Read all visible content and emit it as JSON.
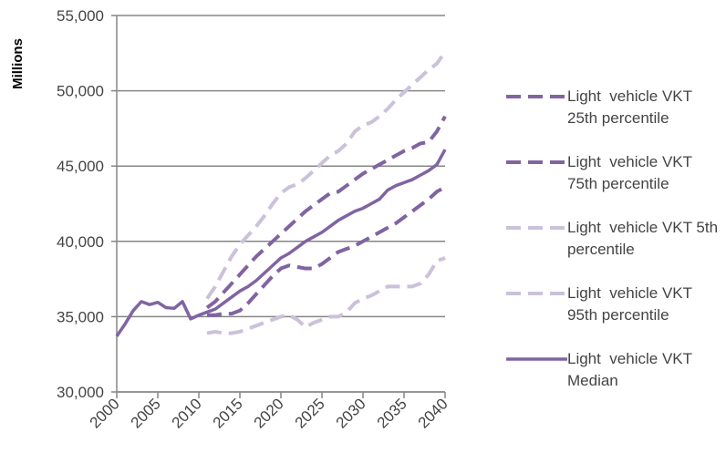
{
  "chart_data": {
    "type": "line",
    "y_label": "Millions",
    "x": [
      2000,
      2001,
      2002,
      2003,
      2004,
      2005,
      2006,
      2007,
      2008,
      2009,
      2010,
      2011,
      2012,
      2013,
      2014,
      2015,
      2016,
      2017,
      2018,
      2019,
      2020,
      2021,
      2022,
      2023,
      2024,
      2025,
      2026,
      2027,
      2028,
      2029,
      2030,
      2031,
      2032,
      2033,
      2034,
      2035,
      2036,
      2037,
      2038,
      2039,
      2040
    ],
    "xlim": [
      2000,
      2040
    ],
    "xticks": [
      2000,
      2005,
      2010,
      2015,
      2020,
      2025,
      2030,
      2035,
      2040
    ],
    "ylim": [
      30000,
      55000
    ],
    "yticks": [
      {
        "value": 30000,
        "label": "30,000"
      },
      {
        "value": 35000,
        "label": "35,000"
      },
      {
        "value": 40000,
        "label": "40,000"
      },
      {
        "value": 45000,
        "label": "45,000"
      },
      {
        "value": 50000,
        "label": "50,000"
      },
      {
        "value": 55000,
        "label": "55,000"
      }
    ],
    "grid": true,
    "legend": "right",
    "series": [
      {
        "name": "Light  vehicle VKT 25th percentile",
        "color": "#8064a2",
        "dashed": true,
        "values": [
          null,
          null,
          null,
          null,
          null,
          null,
          null,
          null,
          null,
          null,
          null,
          35100,
          35100,
          35200,
          35200,
          35400,
          35900,
          36500,
          37100,
          37700,
          38200,
          38400,
          38300,
          38200,
          38200,
          38500,
          38900,
          39300,
          39500,
          39700,
          40000,
          40300,
          40600,
          40900,
          41200,
          41600,
          42000,
          42400,
          42800,
          43300,
          43600
        ]
      },
      {
        "name": "Light  vehicle VKT 75th percentile",
        "color": "#8064a2",
        "dashed": true,
        "values": [
          null,
          null,
          null,
          null,
          null,
          null,
          null,
          null,
          null,
          null,
          null,
          35600,
          36000,
          36600,
          37200,
          37800,
          38400,
          39000,
          39500,
          40000,
          40500,
          41000,
          41500,
          42000,
          42400,
          42800,
          43200,
          43300,
          43700,
          44100,
          44500,
          44800,
          45100,
          45400,
          45700,
          46000,
          46200,
          46500,
          46600,
          47300,
          48300
        ]
      },
      {
        "name": "Light  vehicle VKT 5th percentile",
        "color": "#ccc1da",
        "dashed": true,
        "values": [
          null,
          null,
          null,
          null,
          null,
          null,
          null,
          null,
          null,
          null,
          null,
          33900,
          34000,
          33900,
          33900,
          34000,
          34200,
          34400,
          34600,
          34800,
          35000,
          35100,
          34800,
          34300,
          34600,
          34800,
          35000,
          35000,
          35300,
          35900,
          36200,
          36400,
          36700,
          37000,
          37000,
          37000,
          37000,
          37200,
          37800,
          38700,
          38900
        ]
      },
      {
        "name": "Light  vehicle VKT 95th percentile",
        "color": "#ccc1da",
        "dashed": true,
        "values": [
          null,
          null,
          null,
          null,
          null,
          null,
          null,
          null,
          null,
          null,
          null,
          36200,
          37000,
          38000,
          39000,
          39800,
          40400,
          41000,
          41700,
          42500,
          43200,
          43600,
          43800,
          44200,
          44700,
          45200,
          45700,
          46000,
          46500,
          47300,
          47700,
          47900,
          48300,
          48800,
          49400,
          49900,
          50400,
          50900,
          51400,
          51800,
          52600
        ]
      },
      {
        "name": "Light  vehicle VKT Median",
        "color": "#8064a2",
        "dashed": false,
        "values": [
          33700,
          34500,
          35400,
          36000,
          35800,
          35950,
          35600,
          35550,
          36000,
          34850,
          35100,
          35300,
          35500,
          35900,
          36300,
          36700,
          37000,
          37400,
          37900,
          38400,
          38900,
          39200,
          39600,
          40000,
          40300,
          40600,
          41000,
          41400,
          41700,
          42000,
          42200,
          42500,
          42800,
          43400,
          43700,
          43900,
          44100,
          44400,
          44700,
          45100,
          46100
        ]
      }
    ]
  }
}
